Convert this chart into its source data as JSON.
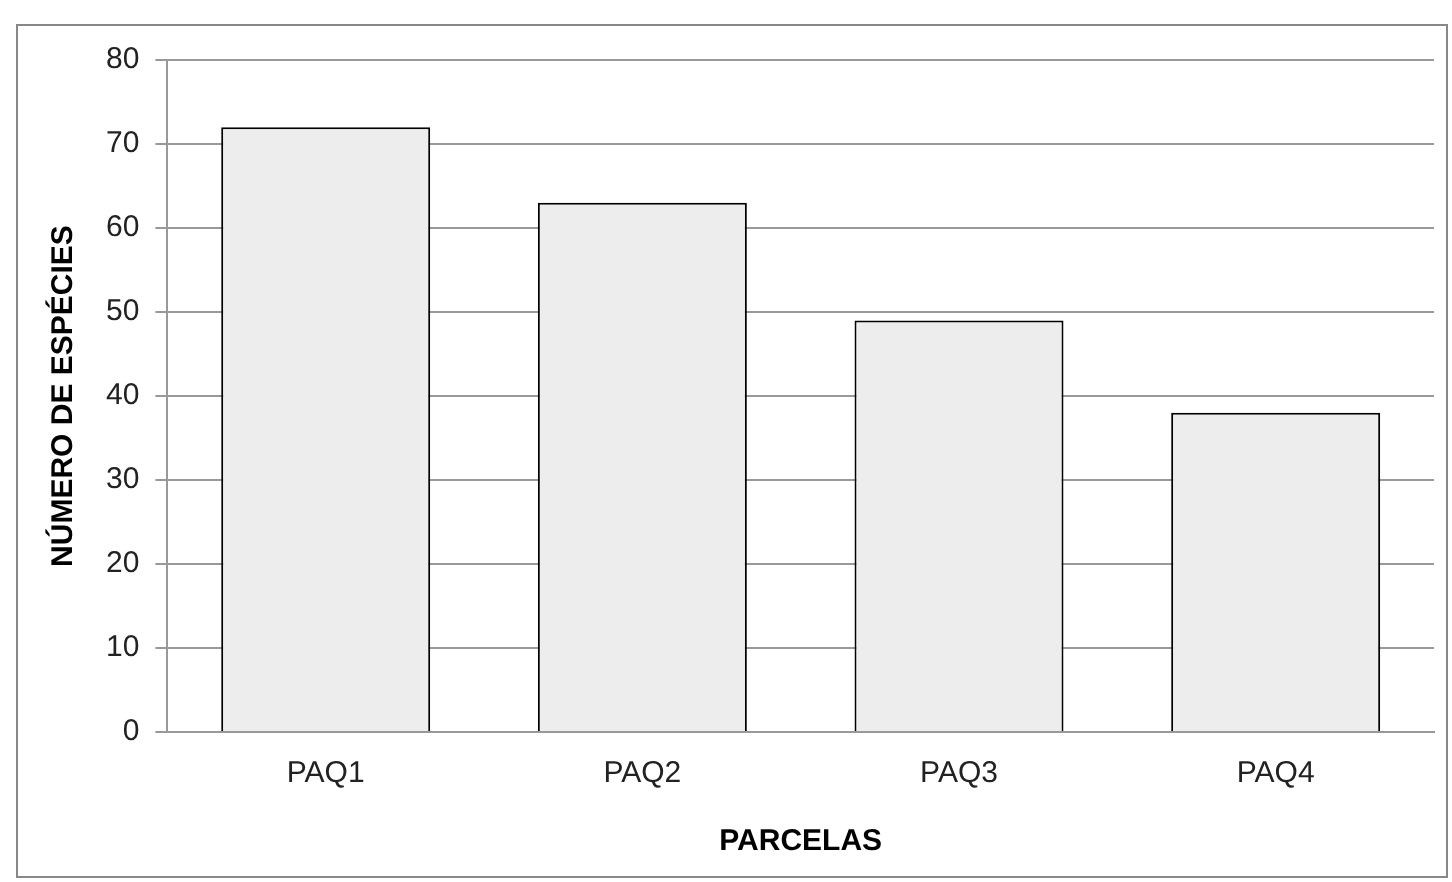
{
  "chart_data": {
    "type": "bar",
    "xlabel": "PARCELAS",
    "ylabel": "NÚMERO DE ESPÉCIES",
    "categories": [
      "PAQ1",
      "PAQ2",
      "PAQ3",
      "PAQ4"
    ],
    "values": [
      72,
      63,
      49,
      38
    ],
    "color": "#ededed",
    "ylim": [
      0,
      80
    ],
    "yticks": [
      0,
      10,
      20,
      30,
      40,
      50,
      60,
      70,
      80
    ],
    "grid": "y"
  }
}
